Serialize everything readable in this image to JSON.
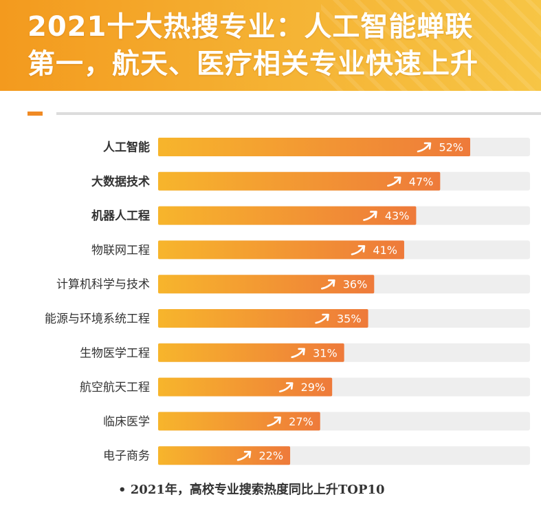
{
  "header": {
    "title_line1": "2021十大热搜专业：人工智能蝉联",
    "title_line2": "第一，航天、医疗相关专业快速上升"
  },
  "footnote": "• 2021年，高校专业搜索热度同比上升TOP10",
  "colors": {
    "bar_start": "#f7b52c",
    "bar_end": "#ee7a3a",
    "track": "#eeeeee",
    "label": "#333333",
    "value_text": "#ffffff"
  },
  "chart_data": {
    "type": "bar",
    "orientation": "horizontal",
    "categories": [
      "人工智能",
      "大数据技术",
      "机器人工程",
      "物联网工程",
      "计算机科学与技术",
      "能源与环境系统工程",
      "生物医学工程",
      "航空航天工程",
      "临床医学",
      "电子商务"
    ],
    "values": [
      52,
      47,
      43,
      41,
      36,
      35,
      31,
      29,
      27,
      22
    ],
    "value_labels": [
      "52%",
      "47%",
      "43%",
      "41%",
      "36%",
      "35%",
      "31%",
      "29%",
      "27%",
      "22%"
    ],
    "bold_categories": [
      true,
      true,
      true,
      false,
      false,
      false,
      false,
      false,
      false,
      false
    ],
    "xlim": [
      0,
      60
    ],
    "grid": false,
    "legend": "none",
    "title": "",
    "xlabel": "",
    "ylabel": ""
  }
}
